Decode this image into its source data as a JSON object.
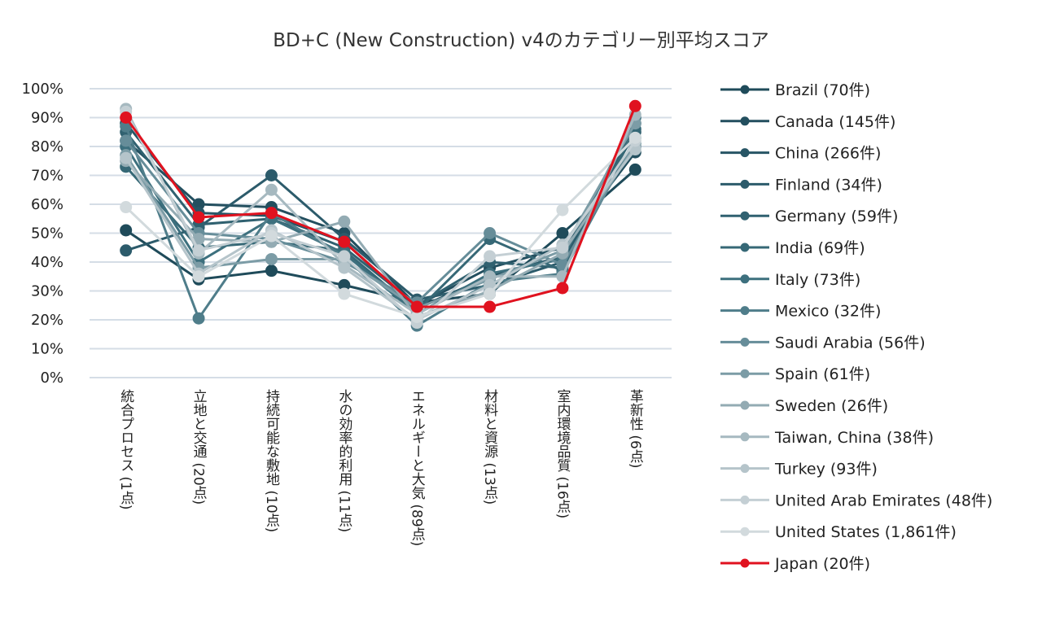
{
  "chart_data": {
    "type": "line",
    "title": "BD+C (New Construction) v4のカテゴリー別平均スコア",
    "categories": [
      "統合プロセス (1点)",
      "立地と交通 (20点)",
      "持続可能な敷地 (10点)",
      "水の効率的利用 (11点)",
      "エネルギーと大気 (89点)",
      "材料と資源 (13点)",
      "室内環境品質 (16点)",
      "革新性 (6点)"
    ],
    "ylim": [
      0,
      100
    ],
    "yticks": [
      "0%",
      "10%",
      "20%",
      "30%",
      "40%",
      "50%",
      "60%",
      "70%",
      "80%",
      "90%",
      "100%"
    ],
    "grid": true,
    "legend": "right",
    "series": [
      {
        "name": "Brazil (70件)",
        "color": "#1f4b5a",
        "values": [
          51,
          34,
          37,
          32,
          26,
          29,
          50,
          72
        ]
      },
      {
        "name": "Canada (145件)",
        "color": "#234f5f",
        "values": [
          82,
          60,
          59,
          50,
          25,
          38,
          45,
          78
        ]
      },
      {
        "name": "China (266件)",
        "color": "#275565",
        "values": [
          88,
          57,
          56,
          47,
          24,
          35,
          42,
          80
        ]
      },
      {
        "name": "Finland (34件)",
        "color": "#2c5b6b",
        "values": [
          44,
          52,
          70,
          48,
          27,
          32,
          40,
          85
        ]
      },
      {
        "name": "Germany (59件)",
        "color": "#306170",
        "values": [
          85,
          53,
          55,
          45,
          25,
          40,
          38,
          88
        ]
      },
      {
        "name": "India (69件)",
        "color": "#366876",
        "values": [
          73,
          45,
          47,
          44,
          23,
          48,
          37,
          86
        ]
      },
      {
        "name": "Italy (73件)",
        "color": "#3d707e",
        "values": [
          80,
          40,
          55,
          43,
          22,
          36,
          41,
          90
        ]
      },
      {
        "name": "Mexico (32件)",
        "color": "#4f7d8a",
        "values": [
          87,
          20.5,
          57,
          42,
          18,
          33,
          36,
          83
        ]
      },
      {
        "name": "Saudi Arabia (56件)",
        "color": "#668d99",
        "values": [
          82,
          50,
          48,
          40,
          26,
          50,
          39,
          81
        ]
      },
      {
        "name": "Spain (61件)",
        "color": "#7c9ca6",
        "values": [
          77,
          38,
          41,
          41,
          24,
          34,
          44,
          88
        ]
      },
      {
        "name": "Sweden (26件)",
        "color": "#93abb3",
        "values": [
          75,
          48,
          47,
          54,
          21,
          30,
          43,
          80
        ]
      },
      {
        "name": "Taiwan, China (38件)",
        "color": "#a6b9c0",
        "values": [
          93,
          43,
          65,
          39,
          22,
          35,
          35,
          91
        ]
      },
      {
        "name": "Turkey (93件)",
        "color": "#b5c4ca",
        "values": [
          76,
          36,
          51,
          38,
          20,
          32,
          46,
          79
        ]
      },
      {
        "name": "United Arab Emirates (48件)",
        "color": "#c4cfd4",
        "values": [
          92,
          44,
          50,
          42,
          19,
          42,
          45,
          82
        ]
      },
      {
        "name": "United States (1,861件)",
        "color": "#d2dadd",
        "values": [
          59,
          35,
          49,
          29,
          21,
          29,
          58,
          83
        ]
      },
      {
        "name": "Japan (20件)",
        "color": "#e0121f",
        "values": [
          90,
          55.5,
          57,
          47,
          24.5,
          24.5,
          31,
          94
        ]
      }
    ]
  }
}
